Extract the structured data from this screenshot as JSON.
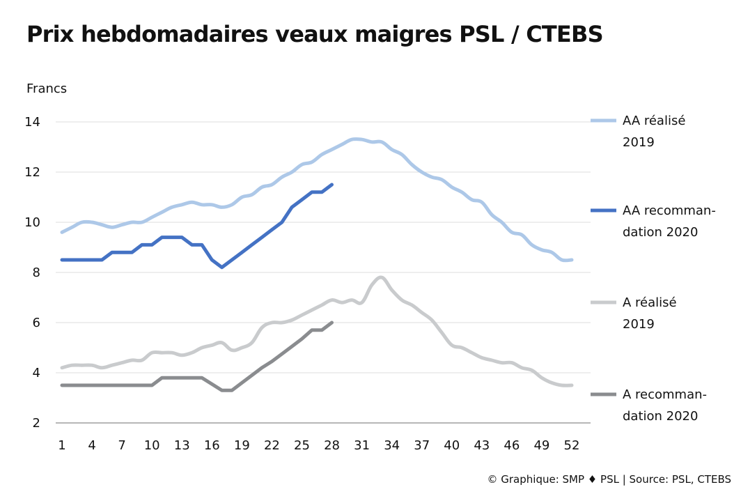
{
  "header": {
    "title": "Prix hebdomadaires veaux maigres PSL / CTEBS"
  },
  "footer": {
    "source": "© Graphique: SMP ♦ PSL | Source: PSL, CTEBS"
  },
  "chart_data": {
    "type": "line",
    "title": "Prix hebdomadaires veaux maigres PSL / CTEBS",
    "ylabel": "Francs",
    "xlabel": "",
    "xlim": [
      1,
      52
    ],
    "ylim": [
      2,
      14
    ],
    "yticks": [
      2,
      4,
      6,
      8,
      10,
      12,
      14
    ],
    "xticks": [
      1,
      4,
      7,
      10,
      13,
      16,
      19,
      22,
      25,
      28,
      31,
      34,
      37,
      40,
      43,
      46,
      49,
      52
    ],
    "grid": true,
    "legend_position": "right",
    "series": [
      {
        "name": "AA réalisé 2019",
        "legend_lines": [
          "AA réalisé",
          "2019"
        ],
        "color": "#adc8e8",
        "x": [
          1,
          2,
          3,
          4,
          5,
          6,
          7,
          8,
          9,
          10,
          11,
          12,
          13,
          14,
          15,
          16,
          17,
          18,
          19,
          20,
          21,
          22,
          23,
          24,
          25,
          26,
          27,
          28,
          29,
          30,
          31,
          32,
          33,
          34,
          35,
          36,
          37,
          38,
          39,
          40,
          41,
          42,
          43,
          44,
          45,
          46,
          47,
          48,
          49,
          50,
          51,
          52
        ],
        "values": [
          9.6,
          9.8,
          10.0,
          10.0,
          9.9,
          9.8,
          9.9,
          10.0,
          10.0,
          10.2,
          10.4,
          10.6,
          10.7,
          10.8,
          10.7,
          10.7,
          10.6,
          10.7,
          11.0,
          11.1,
          11.4,
          11.5,
          11.8,
          12.0,
          12.3,
          12.4,
          12.7,
          12.9,
          13.1,
          13.3,
          13.3,
          13.2,
          13.2,
          12.9,
          12.7,
          12.3,
          12.0,
          11.8,
          11.7,
          11.4,
          11.2,
          10.9,
          10.8,
          10.3,
          10.0,
          9.6,
          9.5,
          9.1,
          8.9,
          8.8,
          8.5,
          8.5
        ]
      },
      {
        "name": "AA recommandation 2020",
        "legend_lines": [
          "AA recomman-",
          "dation  2020"
        ],
        "color": "#4472c4",
        "x": [
          1,
          2,
          3,
          4,
          5,
          6,
          7,
          8,
          9,
          10,
          11,
          12,
          13,
          14,
          15,
          16,
          17,
          18,
          19,
          20,
          21,
          22,
          23,
          24,
          25,
          26,
          27,
          28
        ],
        "values": [
          8.5,
          8.5,
          8.5,
          8.5,
          8.5,
          8.8,
          8.8,
          8.8,
          9.1,
          9.1,
          9.4,
          9.4,
          9.4,
          9.1,
          9.1,
          8.5,
          8.2,
          8.5,
          8.8,
          9.1,
          9.4,
          9.7,
          10.0,
          10.6,
          10.9,
          11.2,
          11.2,
          11.5
        ]
      },
      {
        "name": "A réalisé 2019",
        "legend_lines": [
          "A réalisé",
          "2019"
        ],
        "color": "#c9cbcd",
        "x": [
          1,
          2,
          3,
          4,
          5,
          6,
          7,
          8,
          9,
          10,
          11,
          12,
          13,
          14,
          15,
          16,
          17,
          18,
          19,
          20,
          21,
          22,
          23,
          24,
          25,
          26,
          27,
          28,
          29,
          30,
          31,
          32,
          33,
          34,
          35,
          36,
          37,
          38,
          39,
          40,
          41,
          42,
          43,
          44,
          45,
          46,
          47,
          48,
          49,
          50,
          51,
          52
        ],
        "values": [
          4.2,
          4.3,
          4.3,
          4.3,
          4.2,
          4.3,
          4.4,
          4.5,
          4.5,
          4.8,
          4.8,
          4.8,
          4.7,
          4.8,
          5.0,
          5.1,
          5.2,
          4.9,
          5.0,
          5.2,
          5.8,
          6.0,
          6.0,
          6.1,
          6.3,
          6.5,
          6.7,
          6.9,
          6.8,
          6.9,
          6.8,
          7.5,
          7.8,
          7.3,
          6.9,
          6.7,
          6.4,
          6.1,
          5.6,
          5.1,
          5.0,
          4.8,
          4.6,
          4.5,
          4.4,
          4.4,
          4.2,
          4.1,
          3.8,
          3.6,
          3.5,
          3.5
        ]
      },
      {
        "name": "A recommandation 2020",
        "legend_lines": [
          "A recomman-",
          "dation 2020"
        ],
        "color": "#8a8c8f",
        "x": [
          1,
          2,
          3,
          4,
          5,
          6,
          7,
          8,
          9,
          10,
          11,
          12,
          13,
          14,
          15,
          16,
          17,
          18,
          19,
          20,
          21,
          22,
          23,
          24,
          25,
          26,
          27,
          28
        ],
        "values": [
          3.5,
          3.5,
          3.5,
          3.5,
          3.5,
          3.5,
          3.5,
          3.5,
          3.5,
          3.5,
          3.8,
          3.8,
          3.8,
          3.8,
          3.8,
          3.55,
          3.3,
          3.3,
          3.6,
          3.9,
          4.2,
          4.45,
          4.75,
          5.05,
          5.35,
          5.7,
          5.7,
          6.0
        ]
      }
    ]
  }
}
